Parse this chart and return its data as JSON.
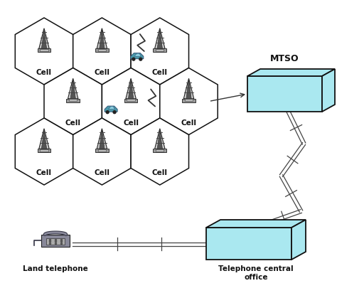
{
  "background_color": "#ffffff",
  "hex_edge_color": "#111111",
  "hex_fill": "#ffffff",
  "box_color": "#aae8f0",
  "cell_label": "Cell",
  "mtso_label": "MTSO",
  "land_tel_label": "Land telephone",
  "tco_label": "Telephone central\noffice",
  "fig_width": 4.74,
  "fig_height": 4.19,
  "dpi": 100
}
